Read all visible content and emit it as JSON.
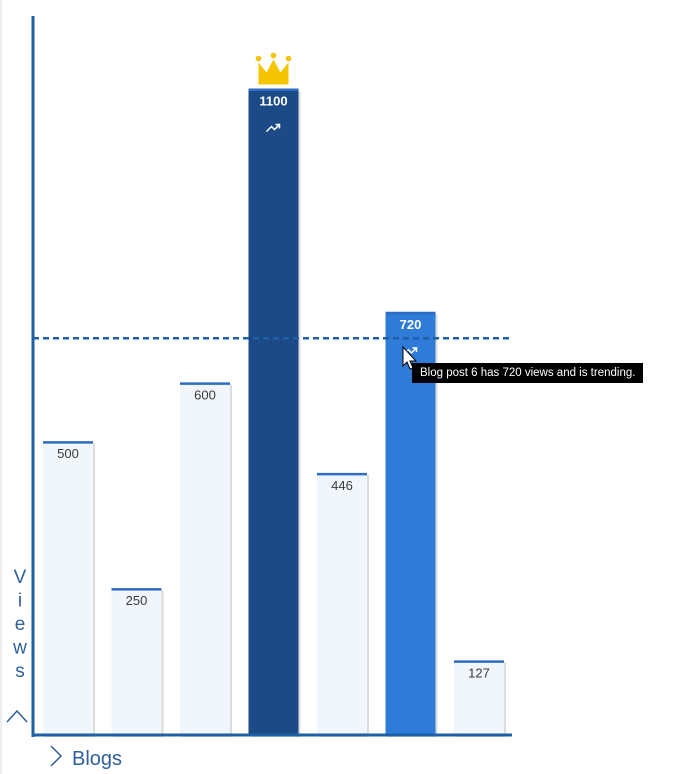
{
  "chart_data": {
    "type": "bar",
    "categories": [
      "",
      "",
      "",
      "",
      "",
      "",
      ""
    ],
    "values": [
      500,
      250,
      600,
      1100,
      446,
      720,
      127
    ],
    "ylabel": "Views",
    "xlabel": "Blogs",
    "ylim": [
      0,
      1220
    ],
    "reference_line": 675,
    "highlighted": [
      3,
      5
    ],
    "trending": [
      3,
      5
    ],
    "top_index": 3,
    "colors": {
      "bar_default": "#f1f6fc",
      "bar_top": "#1b4a86",
      "bar_trending": "#2f7bd8",
      "bar_border": "#2d6cc0",
      "axis": "#1f5fa6",
      "reference": "#1f5fa6",
      "crown": "#f4c400",
      "label_dark": "#3a3a3a",
      "label_light": "#ffffff"
    }
  },
  "tooltip": {
    "text": "Blog post 6 has 720 views and is trending."
  },
  "icons": {
    "crown": "crown-icon",
    "trending": "trending-up-icon",
    "cursor": "mouse-pointer-icon"
  }
}
